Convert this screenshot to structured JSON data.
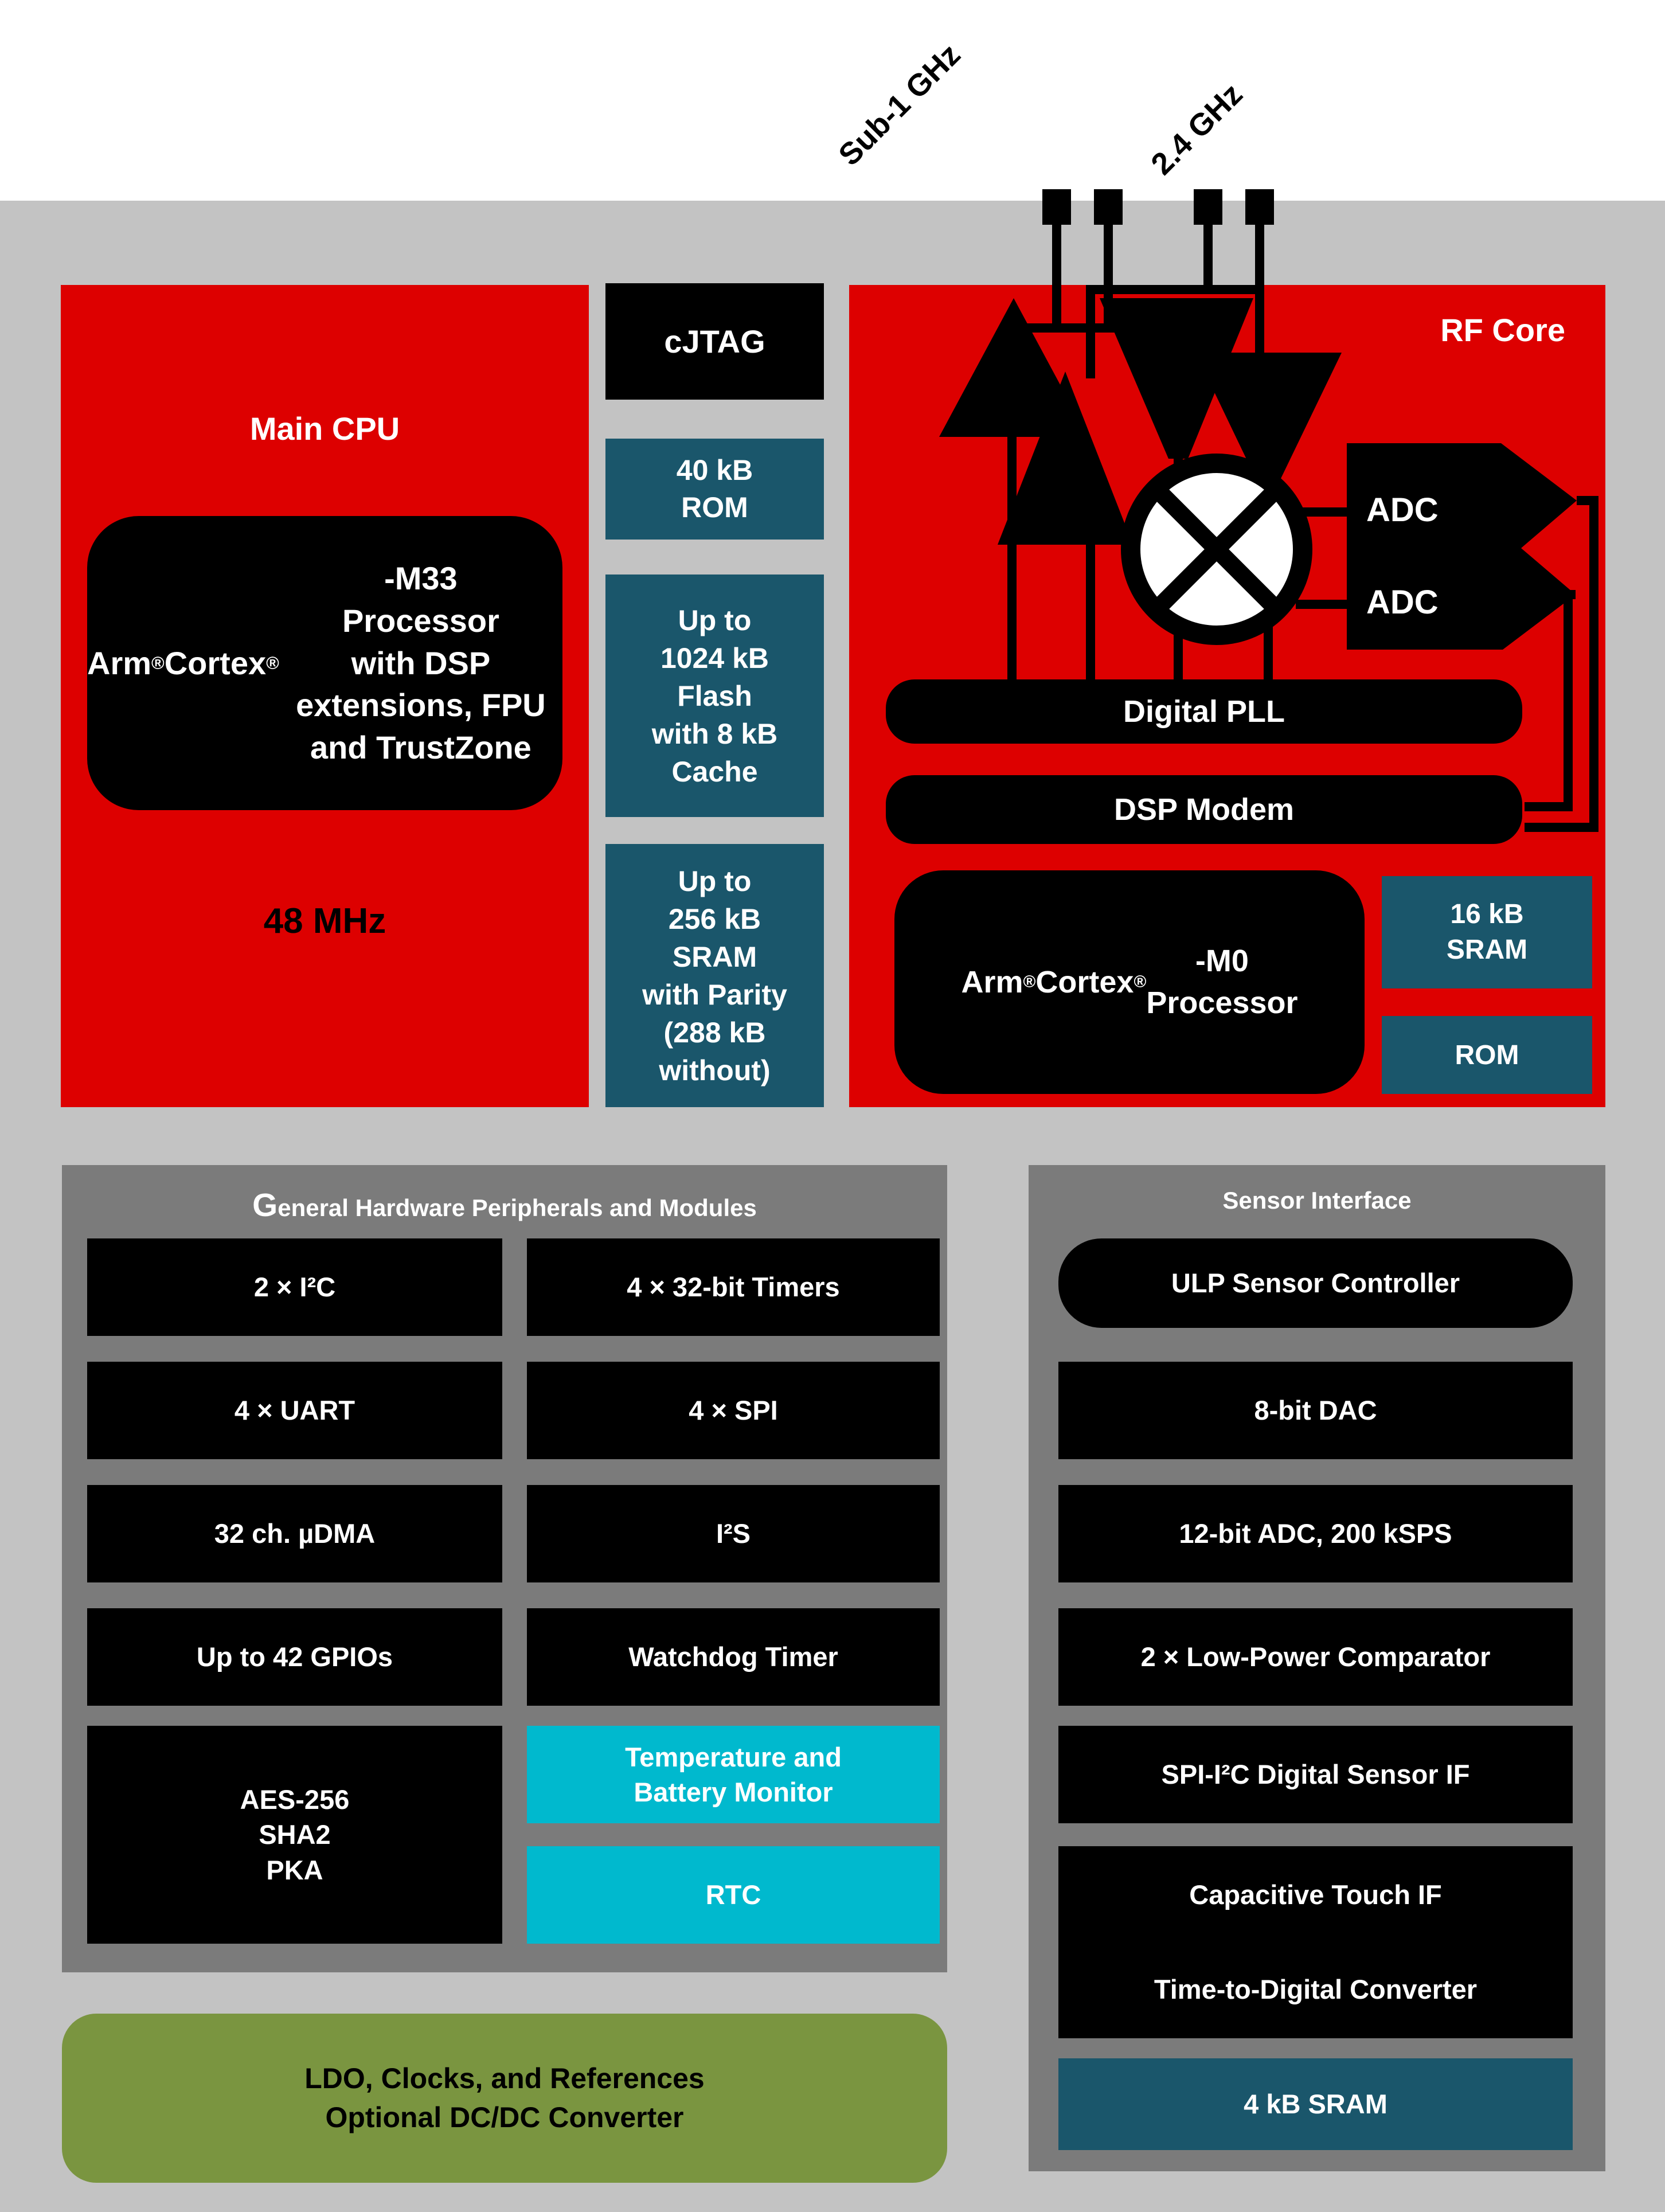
{
  "colors": {
    "bg": "#FFFFFF",
    "gray_bg": "#C3C3C3",
    "panel_gray": "#7B7B7B",
    "red": "#DD0000",
    "teal": "#1A566B",
    "cyan": "#00B9CE",
    "green": "#7A9540",
    "black": "#000000",
    "white": "#FFFFFF"
  },
  "antennas": {
    "sub1_label": "Sub-1 GHz",
    "ghz24_label": "2.4 GHz"
  },
  "main_cpu": {
    "title": "Main CPU",
    "processor": "Arm® Cortex®-M33\nProcessor\nwith DSP extensions, FPU\nand TrustZone",
    "frequency": "48 MHz"
  },
  "memory_column": {
    "cjtag": "cJTAG",
    "rom": "40 kB\nROM",
    "flash": "Up to\n1024 kB\nFlash\nwith 8 kB\nCache",
    "sram": "Up to\n256 kB\nSRAM\nwith Parity\n(288 kB\nwithout)"
  },
  "rf_core": {
    "title": "RF Core",
    "adc_top": "ADC",
    "adc_bottom": "ADC",
    "digital_pll": "Digital PLL",
    "dsp_modem": "DSP Modem",
    "processor": "Arm® Cortex®-M0\nProcessor",
    "sram": "16 kB\nSRAM",
    "rom": "ROM"
  },
  "peripherals": {
    "title": "General Hardware Peripherals and Modules",
    "left": [
      "2 × I²C",
      "4 × UART",
      "32 ch. µDMA",
      "Up to 42 GPIOs",
      "AES-256\nSHA2\nPKA"
    ],
    "right": [
      "4 × 32-bit Timers",
      "4 × SPI",
      "I²S",
      "Watchdog Timer",
      "Temperature and\nBattery Monitor",
      "RTC"
    ]
  },
  "power": {
    "ldo": "LDO, Clocks, and References\nOptional DC/DC Converter"
  },
  "sensor_interface": {
    "title": "Sensor Interface",
    "items": [
      "ULP Sensor Controller",
      "8-bit DAC",
      "12-bit ADC, 200 kSPS",
      "2 × Low-Power Comparator",
      "SPI-I²C Digital Sensor IF",
      "Capacitive Touch IF",
      "Time-to-Digital Converter",
      "4 kB SRAM"
    ]
  }
}
